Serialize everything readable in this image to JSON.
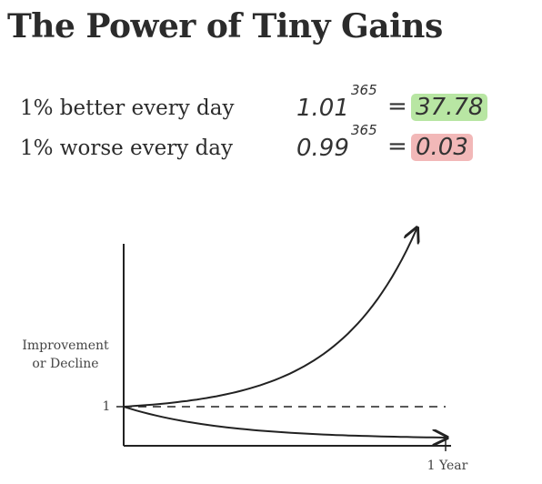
{
  "title": "The Power of Tiny Gains",
  "rows": [
    {
      "label": "1% better every day",
      "base": "1.01",
      "exponent": "365",
      "equals": "=",
      "result": "37.78",
      "color": "#b8e6a3"
    },
    {
      "label": "1% worse every day",
      "base": "0.99",
      "exponent": "365",
      "equals": "=",
      "result": "0.03",
      "color": "#f2b8b8"
    }
  ],
  "chart_data": {
    "type": "line",
    "ylabel_line1": "Improvement",
    "ylabel_line2": "or Decline",
    "xtick_label": "1 Year",
    "ytick_label": "1",
    "series": [
      {
        "style": "curve-up",
        "start": 1,
        "end": 37.78
      },
      {
        "style": "dashed-baseline",
        "start": 1,
        "end": 1
      },
      {
        "style": "curve-down",
        "start": 1,
        "end": 0.03
      }
    ],
    "axis_color": "#222222"
  }
}
